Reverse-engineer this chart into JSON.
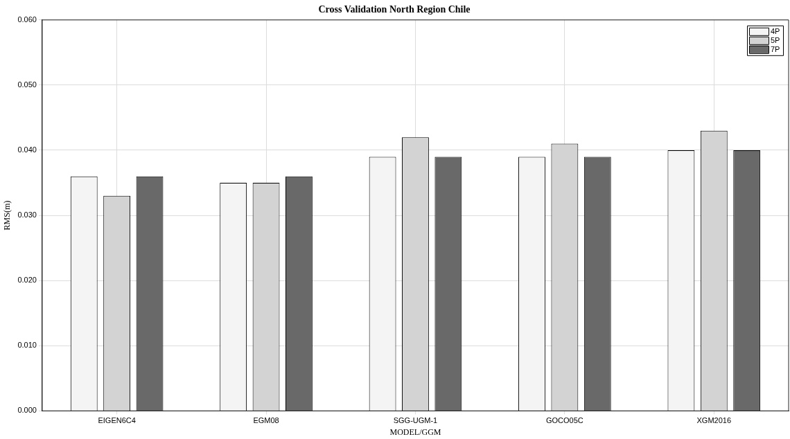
{
  "chart_data": {
    "type": "bar",
    "title": "Cross Validation North Region Chile",
    "xlabel": "MODEL/GGM",
    "ylabel": "RMS(m)",
    "categories": [
      "EIGEN6C4",
      "EGM08",
      "SGG-UGM-1",
      "GOCO05C",
      "XGM2016"
    ],
    "series": [
      {
        "name": "4P",
        "color": "#f4f4f4",
        "values": [
          0.036,
          0.035,
          0.039,
          0.039,
          0.04
        ]
      },
      {
        "name": "5P",
        "color": "#d3d3d3",
        "values": [
          0.033,
          0.035,
          0.042,
          0.041,
          0.043
        ]
      },
      {
        "name": "7P",
        "color": "#696969",
        "values": [
          0.036,
          0.036,
          0.039,
          0.039,
          0.04
        ]
      }
    ],
    "ylim": [
      0,
      0.06
    ],
    "yticks": [
      {
        "value": 0,
        "label": "0.000"
      },
      {
        "value": 0.01,
        "label": "0.010"
      },
      {
        "value": 0.02,
        "label": "0.020"
      },
      {
        "value": 0.03,
        "label": "0.030"
      },
      {
        "value": 0.04,
        "label": "0.040"
      },
      {
        "value": 0.05,
        "label": "0.050"
      },
      {
        "value": 0.06,
        "label": "0.060"
      }
    ],
    "grid": true,
    "legend": "top right"
  }
}
